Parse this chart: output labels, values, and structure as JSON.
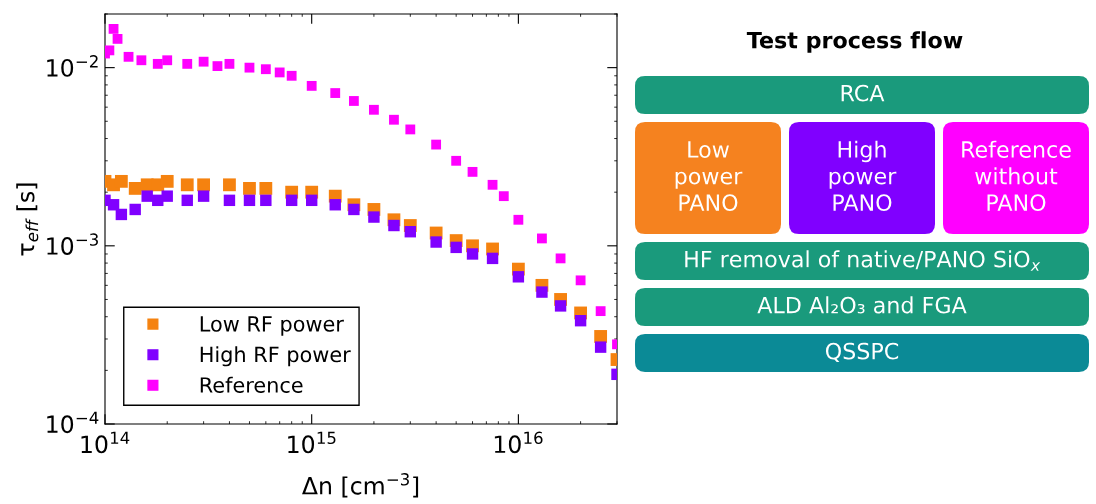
{
  "chart_data": [
    {
      "type": "scatter",
      "xlabel": "Δn [cm$^{−3}$]",
      "ylabel": "τ$_{eff}$ [s]",
      "log": "xy",
      "marker": "square",
      "legend": "bottom left",
      "grid": false,
      "xlim": [
        100000000000000.0,
        3e+16
      ],
      "ylim": [
        0.0001,
        0.02
      ],
      "xticks": [
        {
          "value": 100000000000000.0,
          "label": "10$^{14}$"
        },
        {
          "value": 1000000000000000.0,
          "label": "10$^{15}$"
        },
        {
          "value": 1e+16,
          "label": "10$^{16}$"
        }
      ],
      "yticks": [
        {
          "value": 0.0001,
          "label": "10$^{−4}$"
        },
        {
          "value": 0.001,
          "label": "10$^{−3}$"
        },
        {
          "value": 0.01,
          "label": "10$^{−2}$"
        }
      ],
      "series": [
        {
          "name": "Low RF power",
          "color": "#f5820f",
          "x": [
            100000000000000.0,
            110000000000000.0,
            120000000000000.0,
            140000000000000.0,
            160000000000000.0,
            180000000000000.0,
            200000000000000.0,
            250000000000000.0,
            300000000000000.0,
            400000000000000.0,
            500000000000000.0,
            600000000000000.0,
            800000000000000.0,
            1000000000000000.0,
            1300000000000000.0,
            1600000000000000.0,
            2000000000000000.0,
            2500000000000000.0,
            3000000000000000.0,
            4000000000000000.0,
            5000000000000000.0,
            6000000000000000.0,
            7500000000000000.0,
            1e+16,
            1.3e+16,
            1.6e+16,
            2e+16,
            2.5e+16,
            3e+16
          ],
          "values": [
            0.0023,
            0.0022,
            0.0023,
            0.0021,
            0.0022,
            0.0022,
            0.0023,
            0.0022,
            0.0022,
            0.0022,
            0.0021,
            0.0021,
            0.002,
            0.002,
            0.0019,
            0.0017,
            0.0016,
            0.0014,
            0.0013,
            0.00118,
            0.00107,
            0.001,
            0.00096,
            0.00074,
            0.0006,
            0.0005,
            0.00042,
            0.00031,
            0.00023
          ]
        },
        {
          "name": "High RF power",
          "color": "#8000ff",
          "x": [
            100000000000000.0,
            110000000000000.0,
            120000000000000.0,
            140000000000000.0,
            160000000000000.0,
            180000000000000.0,
            200000000000000.0,
            250000000000000.0,
            300000000000000.0,
            400000000000000.0,
            500000000000000.0,
            600000000000000.0,
            800000000000000.0,
            1000000000000000.0,
            1300000000000000.0,
            1600000000000000.0,
            2000000000000000.0,
            2500000000000000.0,
            3000000000000000.0,
            4000000000000000.0,
            5000000000000000.0,
            6000000000000000.0,
            7500000000000000.0,
            1e+16,
            1.3e+16,
            1.6e+16,
            2e+16,
            2.5e+16,
            3e+16
          ],
          "values": [
            0.0018,
            0.0017,
            0.0015,
            0.0016,
            0.0019,
            0.0018,
            0.0019,
            0.0018,
            0.0019,
            0.0018,
            0.0018,
            0.0018,
            0.0018,
            0.0018,
            0.0017,
            0.0016,
            0.00145,
            0.0013,
            0.0012,
            0.00105,
            0.00098,
            0.0009,
            0.00085,
            0.00067,
            0.00055,
            0.00046,
            0.00038,
            0.00027,
            0.00019
          ]
        },
        {
          "name": "Reference",
          "color": "#ff00ff",
          "x": [
            100000000000000.0,
            105000000000000.0,
            110000000000000.0,
            115000000000000.0,
            130000000000000.0,
            150000000000000.0,
            180000000000000.0,
            200000000000000.0,
            250000000000000.0,
            300000000000000.0,
            350000000000000.0,
            400000000000000.0,
            500000000000000.0,
            600000000000000.0,
            700000000000000.0,
            800000000000000.0,
            1000000000000000.0,
            1300000000000000.0,
            1600000000000000.0,
            2000000000000000.0,
            2500000000000000.0,
            3000000000000000.0,
            4000000000000000.0,
            5000000000000000.0,
            6000000000000000.0,
            7500000000000000.0,
            8500000000000000.0,
            1e+16,
            1.3e+16,
            1.6e+16,
            2e+16,
            2.5e+16,
            3e+16
          ],
          "values": [
            0.012,
            0.0125,
            0.0165,
            0.0145,
            0.0115,
            0.011,
            0.0105,
            0.011,
            0.0105,
            0.0108,
            0.0102,
            0.0105,
            0.01,
            0.0098,
            0.0094,
            0.009,
            0.0079,
            0.0072,
            0.0065,
            0.0058,
            0.0051,
            0.0045,
            0.0037,
            0.003,
            0.0026,
            0.0022,
            0.0019,
            0.0014,
            0.0011,
            0.00085,
            0.00064,
            0.00043,
            0.00028
          ]
        }
      ]
    },
    {
      "type": "other",
      "title": "Test process flow",
      "categories": [
        "RCA",
        "Low\npower\nPANO",
        "High\npower\nPANO",
        "Reference\nwithout\nPANO",
        "HF removal of native/PANO SiO$_{x}$",
        "ALD Al₂O₃ and FGA",
        "QSSPC"
      ],
      "colors": [
        "#1a9a7c",
        "#f5821f",
        "#8000ff",
        "#ff00ff",
        "#1a9a7c",
        "#1a9a7c",
        "#0b8a96"
      ]
    }
  ]
}
